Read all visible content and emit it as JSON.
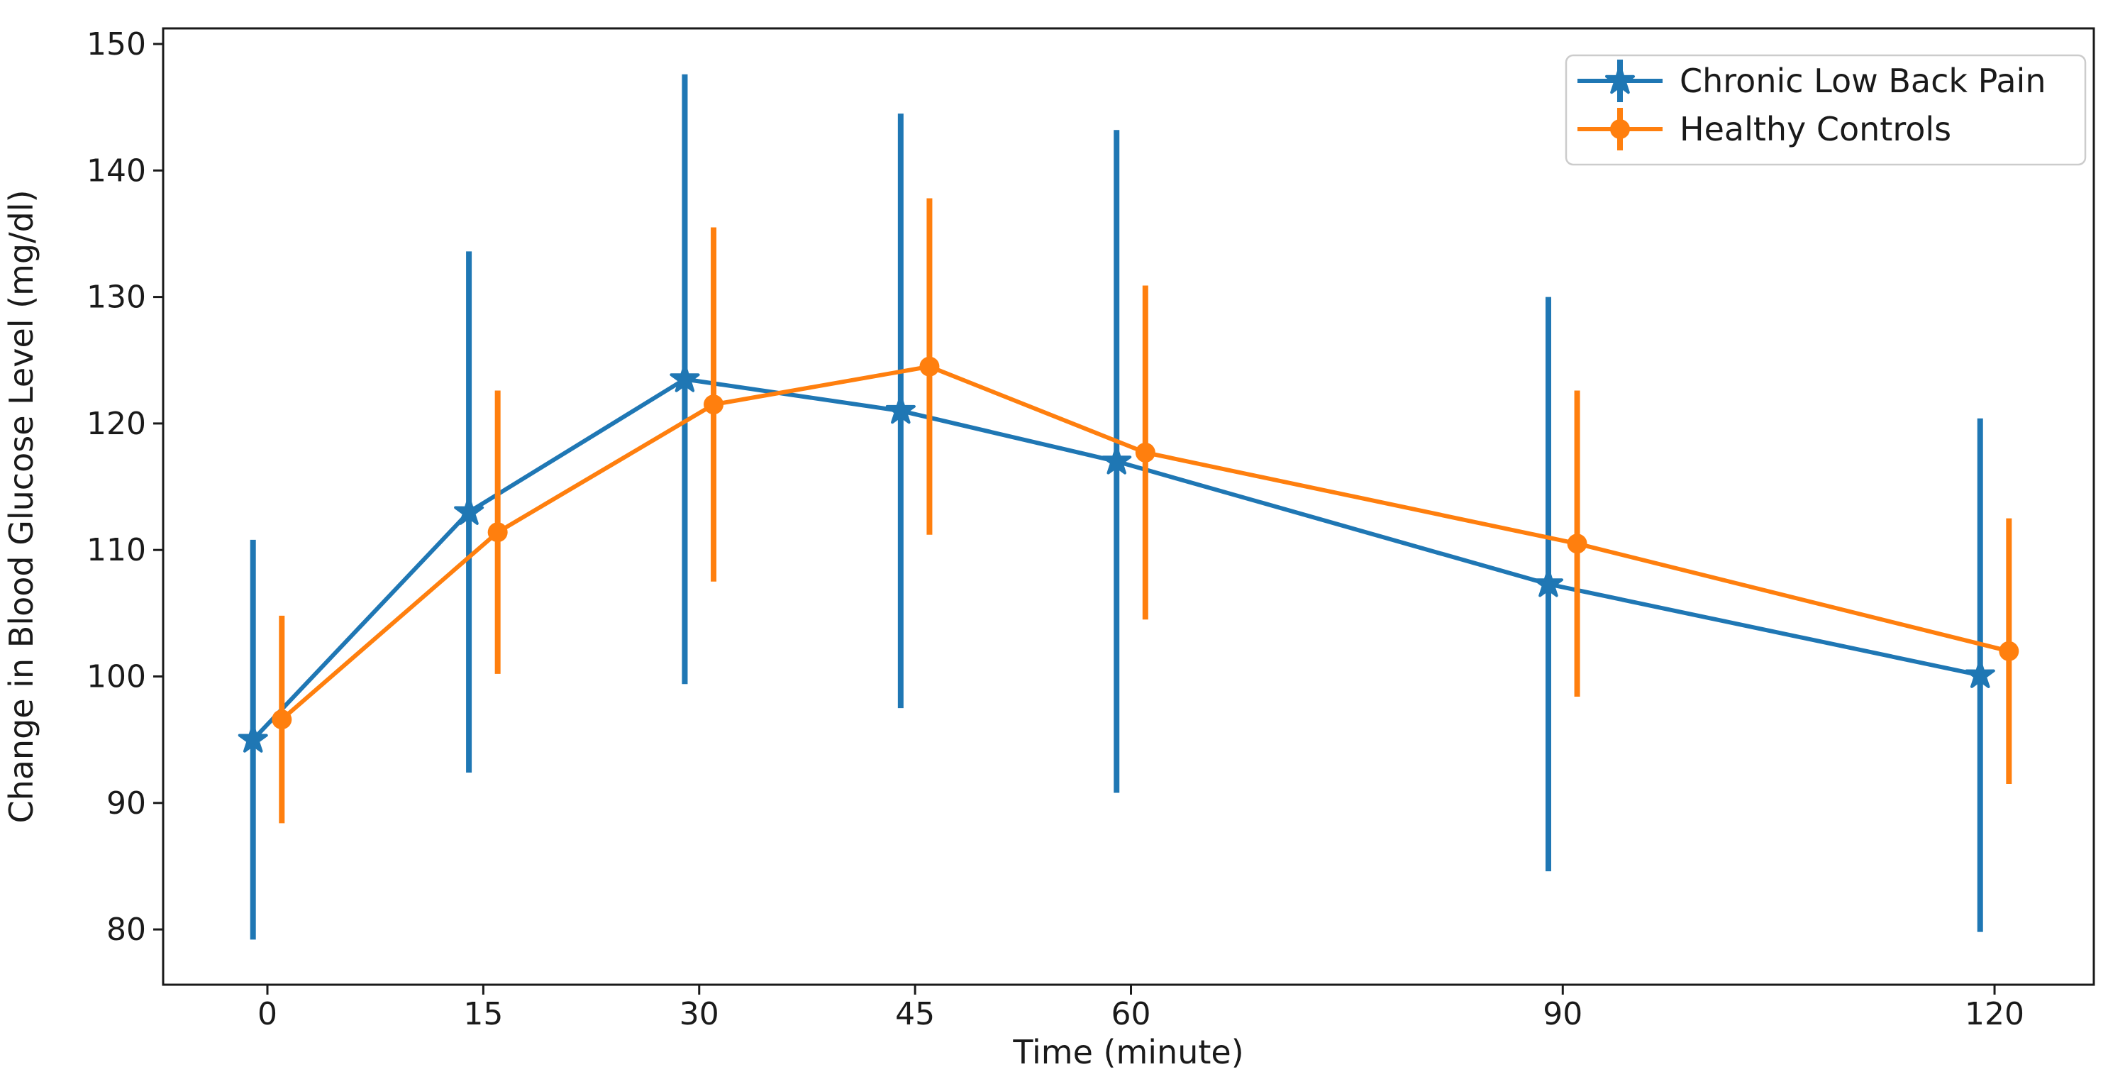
{
  "chart_data": {
    "type": "line",
    "title": "",
    "xlabel": "Time (minute)",
    "ylabel": "Change in Blood Glucose Level (mg/dl)",
    "x": [
      0,
      15,
      30,
      45,
      60,
      90,
      120
    ],
    "x_tick_labels": [
      "0",
      "15",
      "30",
      "45",
      "60",
      "90",
      "120"
    ],
    "y_ticks": [
      80,
      90,
      100,
      110,
      120,
      130,
      140,
      150
    ],
    "xlim": [
      -7.2,
      126.9
    ],
    "ylim": [
      75.6,
      151.2
    ],
    "grid": false,
    "error_bar_caps": false,
    "legend": {
      "position": "upper right",
      "entries": [
        "Chronic Low Back Pain",
        "Healthy Controls"
      ]
    },
    "series": [
      {
        "name": "Chronic Low Back Pain",
        "color": "#1f77b4",
        "marker": "star",
        "x_jitter_minutes": -1,
        "values": [
          95.0,
          113.0,
          123.5,
          121.0,
          117.0,
          107.3,
          100.1
        ],
        "errors": [
          15.8,
          20.6,
          24.1,
          23.5,
          26.2,
          22.7,
          20.3
        ]
      },
      {
        "name": "Healthy Controls",
        "color": "#ff7f0e",
        "marker": "circle",
        "x_jitter_minutes": 1,
        "values": [
          96.6,
          111.4,
          121.5,
          124.5,
          117.7,
          110.5,
          102.0
        ],
        "errors": [
          8.2,
          11.2,
          14.0,
          13.3,
          13.2,
          12.1,
          10.5
        ]
      }
    ],
    "axis_color": "#1a1a1a",
    "background_color": "#ffffff"
  }
}
